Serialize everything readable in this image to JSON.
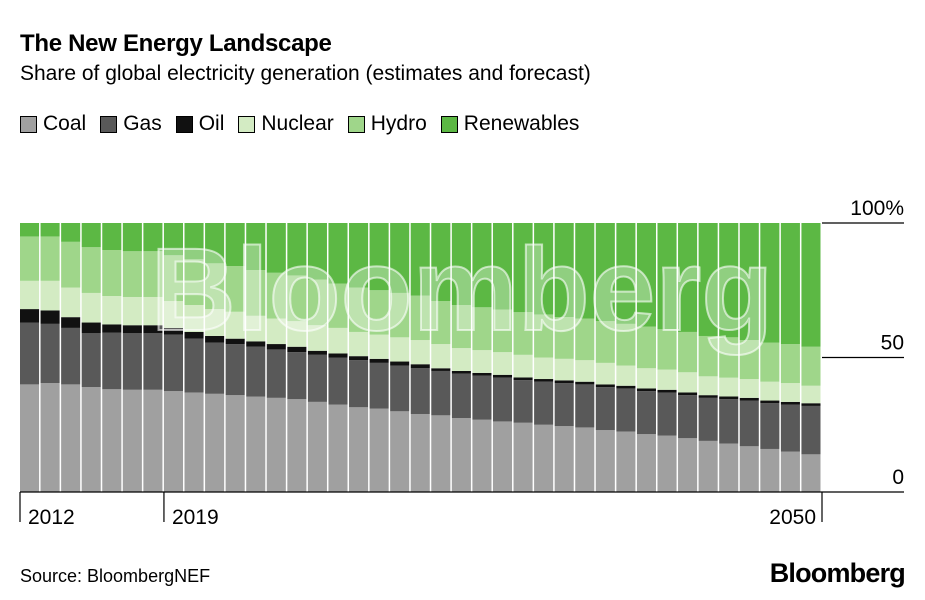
{
  "title": "The New Energy Landscape",
  "subtitle": "Share of global electricity generation (estimates and forecast)",
  "source": "Source: BloombergNEF",
  "brand": "Bloomberg",
  "watermark": "Bloomberg",
  "chart_data": {
    "type": "bar",
    "stacked": true,
    "x_start": 2012,
    "x_end": 2050,
    "tick_labels": [
      "2012",
      "2019",
      "2050"
    ],
    "y_tick_labels": [
      "100%",
      "50",
      "0"
    ],
    "ylim": [
      0,
      100
    ],
    "legend_position": "top-left",
    "series": [
      {
        "name": "Coal",
        "color": "#a0a0a0",
        "values": [
          40,
          40.5,
          40,
          39,
          38,
          38,
          38,
          37.5,
          37,
          36.5,
          36,
          35.5,
          35,
          34.5,
          33.5,
          32.5,
          31.5,
          31,
          30,
          29,
          28.5,
          27.5,
          27,
          26.5,
          26,
          25,
          24.5,
          24,
          23,
          22.5,
          21.5,
          21,
          20,
          19,
          18,
          17,
          16,
          15,
          14
        ]
      },
      {
        "name": "Gas",
        "color": "#595959",
        "values": [
          23,
          22,
          21,
          20,
          21,
          21,
          21,
          21,
          20,
          19,
          19,
          18.5,
          18,
          17.5,
          17.5,
          17.5,
          17.5,
          17,
          17,
          17,
          16.5,
          16.5,
          16.5,
          16.5,
          16,
          16,
          16,
          16,
          16,
          16,
          16,
          16,
          16,
          16,
          16.5,
          17,
          17,
          17.5,
          18
        ]
      },
      {
        "name": "Oil",
        "color": "#111111",
        "values": [
          5,
          5,
          4,
          4,
          3,
          3,
          3,
          2.5,
          2.5,
          2.5,
          2,
          2,
          2,
          2,
          1.5,
          1.5,
          1.5,
          1.5,
          1.5,
          1.5,
          1,
          1,
          1,
          1,
          1,
          1,
          1,
          1,
          1,
          1,
          1,
          1,
          1,
          1,
          1,
          1,
          1,
          1,
          1
        ]
      },
      {
        "name": "Nuclear",
        "color": "#d3ebc3",
        "values": [
          10.5,
          11,
          11,
          11,
          10.5,
          10.5,
          10.5,
          10,
          10,
          10,
          10,
          9.5,
          9.5,
          9.5,
          9.5,
          9.5,
          9,
          9,
          9,
          9,
          9,
          8.5,
          8.5,
          8.5,
          8.5,
          8,
          8,
          8,
          8,
          7.5,
          7.5,
          7.5,
          7.5,
          7,
          7,
          7,
          7,
          7,
          6.5
        ]
      },
      {
        "name": "Hydro",
        "color": "#9fd68a",
        "values": [
          16.5,
          16.5,
          17,
          17,
          17,
          17,
          17,
          17,
          17,
          17,
          17,
          17,
          17,
          17,
          17,
          16.5,
          16.5,
          16.5,
          16.5,
          16.5,
          16,
          16,
          16,
          16,
          16,
          16,
          15.5,
          15.5,
          15.5,
          15.5,
          15.5,
          15,
          15,
          15,
          15,
          14.5,
          14.5,
          14.5,
          14.5
        ]
      },
      {
        "name": "Renewables",
        "color": "#5cb844",
        "values": [
          5,
          5,
          7,
          9,
          10,
          10.5,
          10.5,
          12,
          13.5,
          15,
          16,
          17.5,
          18.5,
          19.5,
          21,
          22.5,
          24,
          25,
          26,
          27,
          29,
          30.5,
          31.5,
          32.5,
          33.5,
          34,
          35,
          35.5,
          36.5,
          37.5,
          38.5,
          39.5,
          40.5,
          42,
          42.5,
          43.5,
          44.5,
          45,
          46
        ]
      }
    ]
  }
}
